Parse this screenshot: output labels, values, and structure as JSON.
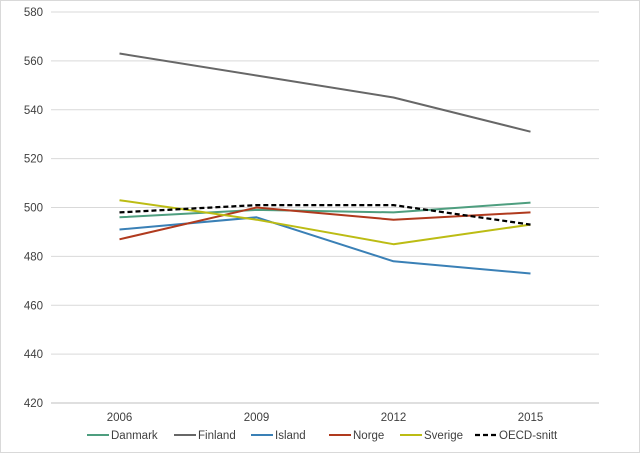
{
  "chart_data": {
    "type": "line",
    "title": "",
    "xlabel": "",
    "ylabel": "",
    "categories": [
      "2006",
      "2009",
      "2012",
      "2015"
    ],
    "ylim": [
      420,
      580
    ],
    "yticks": [
      420,
      440,
      460,
      480,
      500,
      520,
      540,
      560,
      580
    ],
    "grid": true,
    "legend_position": "bottom",
    "series": [
      {
        "name": "Danmark",
        "values": [
          496,
          499,
          498,
          502
        ],
        "color": "#4e9e7f",
        "dashed": false
      },
      {
        "name": "Finland",
        "values": [
          563,
          554,
          545,
          531
        ],
        "color": "#676767",
        "dashed": false
      },
      {
        "name": "Island",
        "values": [
          491,
          496,
          478,
          473
        ],
        "color": "#3a80b6",
        "dashed": false
      },
      {
        "name": "Norge",
        "values": [
          487,
          500,
          495,
          498
        ],
        "color": "#b03a1e",
        "dashed": false
      },
      {
        "name": "Sverige",
        "values": [
          503,
          495,
          485,
          493
        ],
        "color": "#bcbc14",
        "dashed": false
      },
      {
        "name": "OECD-snitt",
        "values": [
          498,
          501,
          501,
          493
        ],
        "color": "#000000",
        "dashed": true
      }
    ]
  }
}
